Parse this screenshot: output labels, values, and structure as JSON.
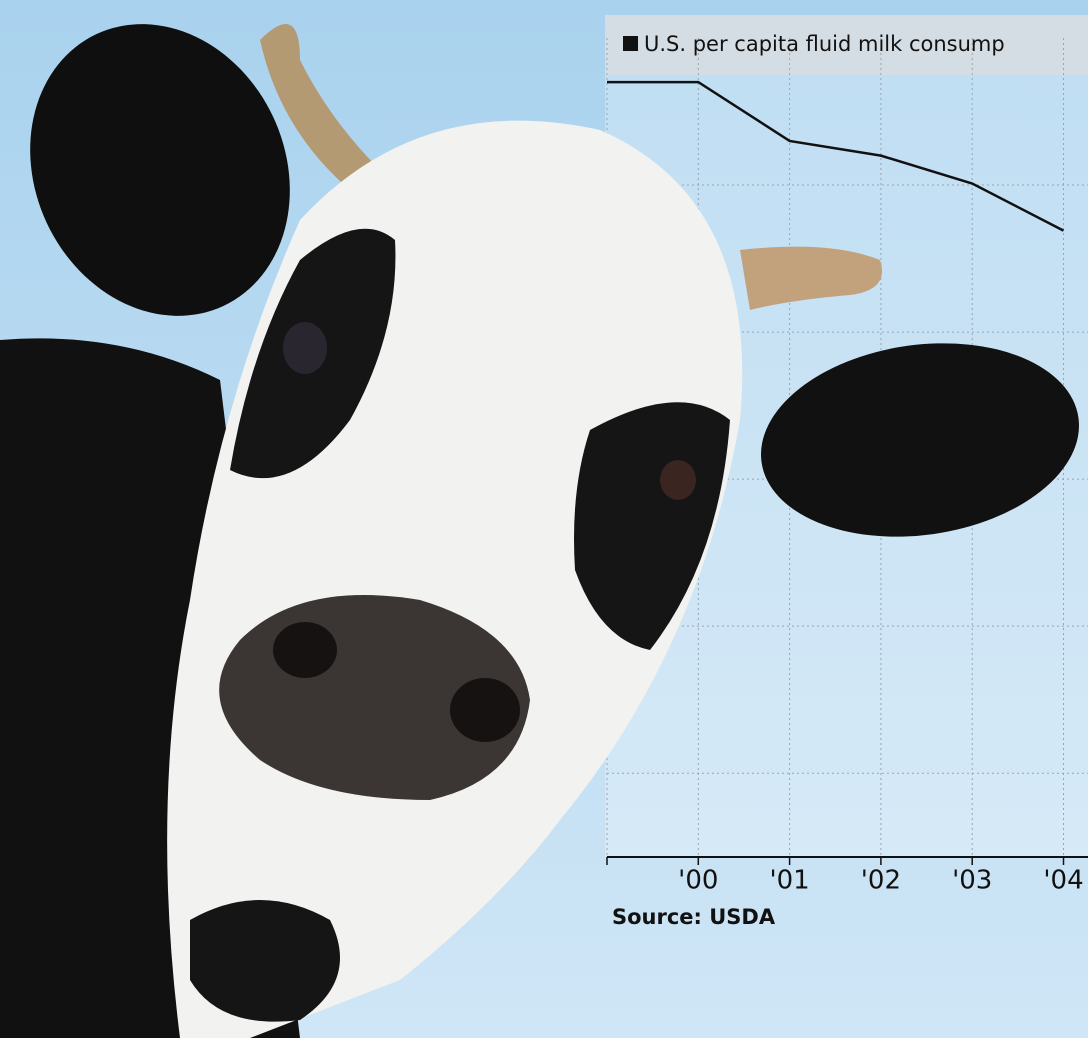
{
  "chart_data": {
    "type": "line",
    "title": "U.S. per capita fluid milk consump",
    "source": "Source: USDA",
    "categories": [
      null,
      "'00",
      "'01",
      "'02",
      "'03",
      "'04"
    ],
    "series": [
      {
        "name": "U.S. per capita fluid milk consump",
        "color": "#111111",
        "values": [
          4.7,
          4.7,
          4.3,
          4.2,
          4.01,
          3.69
        ]
      }
    ],
    "ylim": [
      -0.57,
      5
    ],
    "yticks": [
      0,
      1,
      2,
      3,
      4
    ],
    "grid": true
  }
}
